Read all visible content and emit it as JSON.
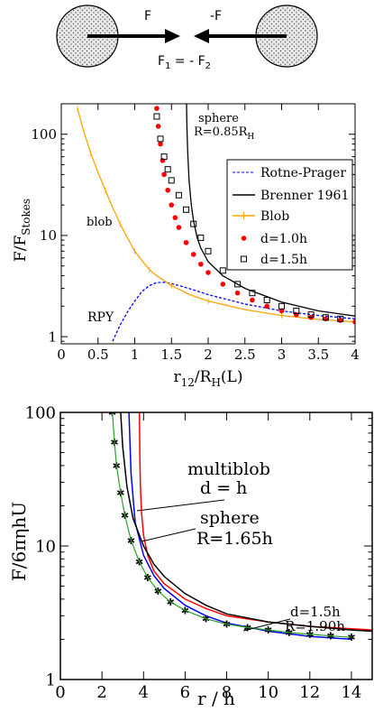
{
  "diagram": {
    "left_force": "F",
    "right_force": "-F",
    "relation": {
      "F": "F",
      "sub1": "1",
      "mid": " = - F",
      "sub2": "2"
    }
  },
  "chart_data": [
    {
      "type": "line",
      "ylabel": "F/F",
      "ylabel_sub": "Stokes",
      "xlabel": "r",
      "xlabel_sub": "12",
      "xlabel_rest": "/R",
      "xlabel_sub2": "H",
      "xlabel_tail": "(L)",
      "xlim": [
        0,
        4
      ],
      "ylim": [
        0.85,
        200
      ],
      "yscale": "log",
      "x_ticks": [
        "0",
        "0.5",
        "1",
        "1.5",
        "2",
        "2.5",
        "3",
        "3.5",
        "4"
      ],
      "y_ticks": [
        "1",
        "10",
        "100"
      ],
      "legend_position": "right",
      "annotations": {
        "sphere_line1": "sphere",
        "sphere_line2": "R=0.85R",
        "sphere_sub": "H",
        "blob": "blob",
        "rpy": "RPY"
      },
      "legend": [
        "Rotne-Prager",
        "Brenner 1961",
        "Blob",
        "d=1.0h",
        "d=1.5h"
      ],
      "series": [
        {
          "name": "Rotne-Prager",
          "color": "#0000ff",
          "style": "dashed",
          "x": [
            0.7,
            0.8,
            0.9,
            1.0,
            1.1,
            1.2,
            1.3,
            1.4,
            1.5,
            1.6,
            1.8,
            2.0,
            2.5,
            3.0,
            3.5,
            4.0
          ],
          "y": [
            0.9,
            1.3,
            1.75,
            2.25,
            2.8,
            3.2,
            3.42,
            3.45,
            3.35,
            3.2,
            2.9,
            2.6,
            2.1,
            1.8,
            1.62,
            1.5
          ]
        },
        {
          "name": "Brenner 1961",
          "color": "#000000",
          "x": [
            1.705,
            1.71,
            1.72,
            1.74,
            1.77,
            1.8,
            1.85,
            1.9,
            2.0,
            2.2,
            2.5,
            3.0,
            3.5,
            4.0
          ],
          "y": [
            200,
            120,
            70,
            35,
            20,
            14,
            9.5,
            7.5,
            5.5,
            4.0,
            3.0,
            2.2,
            1.8,
            1.6
          ]
        },
        {
          "name": "Blob",
          "color": "#ffa500",
          "x": [
            0.22,
            0.3,
            0.4,
            0.5,
            0.6,
            0.7,
            0.8,
            0.9,
            1.0,
            1.1,
            1.2,
            1.3,
            1.5,
            1.75,
            2.0,
            2.5,
            3.0,
            3.5,
            4.0
          ],
          "y": [
            180,
            110,
            65,
            42,
            28,
            19,
            13,
            9.5,
            7.0,
            5.6,
            4.6,
            4.0,
            3.2,
            2.6,
            2.25,
            1.85,
            1.62,
            1.48,
            1.4
          ]
        },
        {
          "name": "d=1.0h",
          "color": "#ff0000",
          "marker": "circle",
          "x": [
            1.3,
            1.32,
            1.35,
            1.38,
            1.4,
            1.45,
            1.5,
            1.55,
            1.6,
            1.7,
            1.8,
            1.9,
            2.0,
            2.2,
            2.4,
            2.6,
            2.8,
            3.0,
            3.2,
            3.4,
            3.6,
            3.8,
            4.0
          ],
          "y": [
            180,
            120,
            80,
            55,
            40,
            28,
            20,
            15,
            12,
            8.5,
            6.5,
            5.2,
            4.3,
            3.3,
            2.7,
            2.3,
            2.0,
            1.8,
            1.65,
            1.55,
            1.5,
            1.45,
            1.4
          ]
        },
        {
          "name": "d=1.5h",
          "color": "#000000",
          "marker": "square",
          "x": [
            1.3,
            1.35,
            1.4,
            1.45,
            1.5,
            1.6,
            1.7,
            1.8,
            1.9,
            2.0,
            2.2,
            2.4,
            2.6,
            2.8,
            3.0,
            3.2,
            3.4,
            3.6,
            3.8
          ],
          "y": [
            150,
            90,
            60,
            45,
            35,
            25,
            18,
            13,
            9.5,
            7.0,
            4.5,
            3.3,
            2.7,
            2.3,
            2.0,
            1.8,
            1.65,
            1.55,
            1.5
          ]
        }
      ]
    },
    {
      "type": "line",
      "ylabel": "F/6πηhU",
      "xlabel": "r / h",
      "xlim": [
        0,
        15
      ],
      "ylim": [
        1,
        100
      ],
      "yscale": "log",
      "x_ticks": [
        "0",
        "2",
        "4",
        "6",
        "8",
        "10",
        "12",
        "14"
      ],
      "y_ticks": [
        "1",
        "10",
        "100"
      ],
      "annotations": {
        "multiblob_line1": "multiblob",
        "multiblob_line2": "d = h",
        "sphere_line1": "sphere",
        "sphere_line2": "R=1.65h",
        "d15_line1": "d=1.5h",
        "d15_line2": "R=1.90h"
      },
      "series": [
        {
          "color": "#0000ff",
          "x": [
            3.3,
            3.4,
            3.6,
            4.0,
            4.5,
            5.0,
            6.0,
            7.0,
            8.0,
            10.0,
            12.0,
            14.0
          ],
          "y": [
            100,
            35,
            15,
            8.5,
            6.0,
            4.8,
            3.6,
            3.0,
            2.65,
            2.3,
            2.1,
            2.0
          ]
        },
        {
          "color": "#ff0000",
          "x": [
            3.8,
            3.82,
            3.85,
            3.9,
            4.0,
            4.2,
            4.5,
            5.0,
            6.0,
            7.0,
            8.0,
            10.0,
            12.0,
            14.0,
            15.0
          ],
          "y": [
            100,
            50,
            28,
            18,
            12,
            8.5,
            6.5,
            5.2,
            4.0,
            3.4,
            3.0,
            2.7,
            2.5,
            2.4,
            2.35
          ]
        },
        {
          "color": "#000000",
          "x": [
            2.9,
            3.0,
            3.2,
            3.5,
            4.0,
            4.5,
            5.0,
            6.0,
            7.0,
            8.0,
            10.0,
            12.0,
            14.0,
            15.0
          ],
          "y": [
            100,
            55,
            28,
            16,
            10,
            7.3,
            5.9,
            4.4,
            3.6,
            3.1,
            2.7,
            2.5,
            2.35,
            2.3
          ]
        },
        {
          "color": "#2ca02c",
          "marker": "star",
          "x": [
            2.5,
            2.6,
            2.7,
            2.9,
            3.1,
            3.4,
            3.8,
            4.2,
            4.7,
            5.3,
            6.0,
            7.0,
            8.0,
            9.0,
            10.0,
            11.0,
            12.0,
            13.0,
            14.0
          ],
          "y": [
            100,
            60,
            40,
            25,
            17,
            11,
            7.6,
            5.8,
            4.6,
            3.8,
            3.3,
            2.85,
            2.6,
            2.45,
            2.35,
            2.25,
            2.18,
            2.12,
            2.07
          ]
        }
      ]
    }
  ]
}
